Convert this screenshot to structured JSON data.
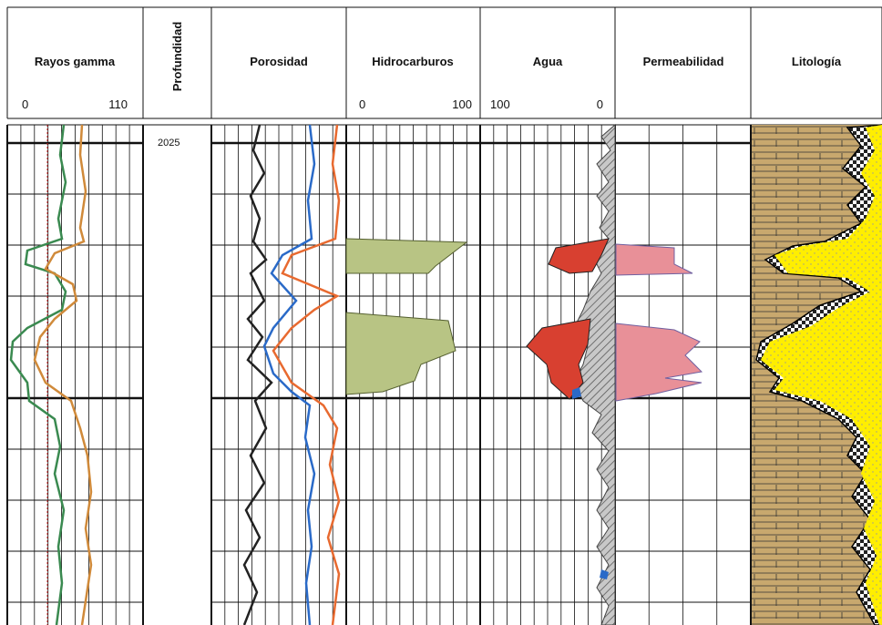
{
  "tracks": [
    {
      "title": "Rayos gamma",
      "scale": [
        "0",
        "110"
      ]
    },
    {
      "title": "Profundidad"
    },
    {
      "title": "Porosidad"
    },
    {
      "title": "Hidrocarburos",
      "scale": [
        "0",
        "100"
      ]
    },
    {
      "title": "Agua",
      "scale": [
        "100",
        "0"
      ]
    },
    {
      "title": "Permeabilidad"
    },
    {
      "title": "Litología"
    }
  ],
  "depth_label": "2025"
}
